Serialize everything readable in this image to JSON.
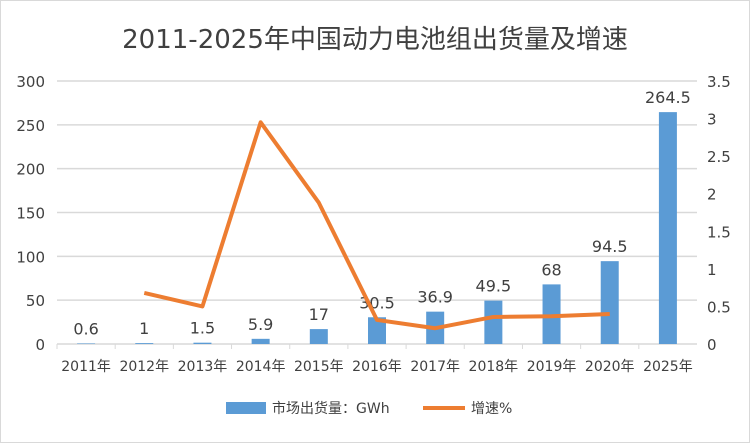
{
  "chart_data": {
    "type": "bar+line",
    "title": "2011-2025年中国动力电池组出货量及增速",
    "categories": [
      "2011年",
      "2012年",
      "2013年",
      "2014年",
      "2015年",
      "2016年",
      "2017年",
      "2018年",
      "2019年",
      "2020年",
      "2025年"
    ],
    "series": [
      {
        "name": "市场出货量：GWh",
        "type": "bar",
        "axis": "left",
        "color": "#5b9bd5",
        "values": [
          0.6,
          1,
          1.5,
          5.9,
          17,
          30.5,
          36.9,
          49.5,
          68,
          94.5,
          264.5
        ],
        "labels": [
          "0.6",
          "1",
          "1.5",
          "5.9",
          "17",
          "30.5",
          "36.9",
          "49.5",
          "68",
          "94.5",
          "264.5"
        ]
      },
      {
        "name": "增速%",
        "type": "line",
        "axis": "right",
        "color": "#ed7d31",
        "values": [
          null,
          0.68,
          0.5,
          2.95,
          1.88,
          0.32,
          0.21,
          0.36,
          0.37,
          0.4,
          null
        ]
      }
    ],
    "y_left": {
      "range": [
        0,
        300
      ],
      "ticks": [
        "0",
        "50",
        "100",
        "150",
        "200",
        "250",
        "300"
      ]
    },
    "y_right": {
      "range": [
        0,
        3.5
      ],
      "ticks": [
        "0",
        "0.5",
        "1",
        "1.5",
        "2",
        "2.5",
        "3",
        "3.5"
      ]
    },
    "grid": true,
    "legend": "bottom"
  }
}
